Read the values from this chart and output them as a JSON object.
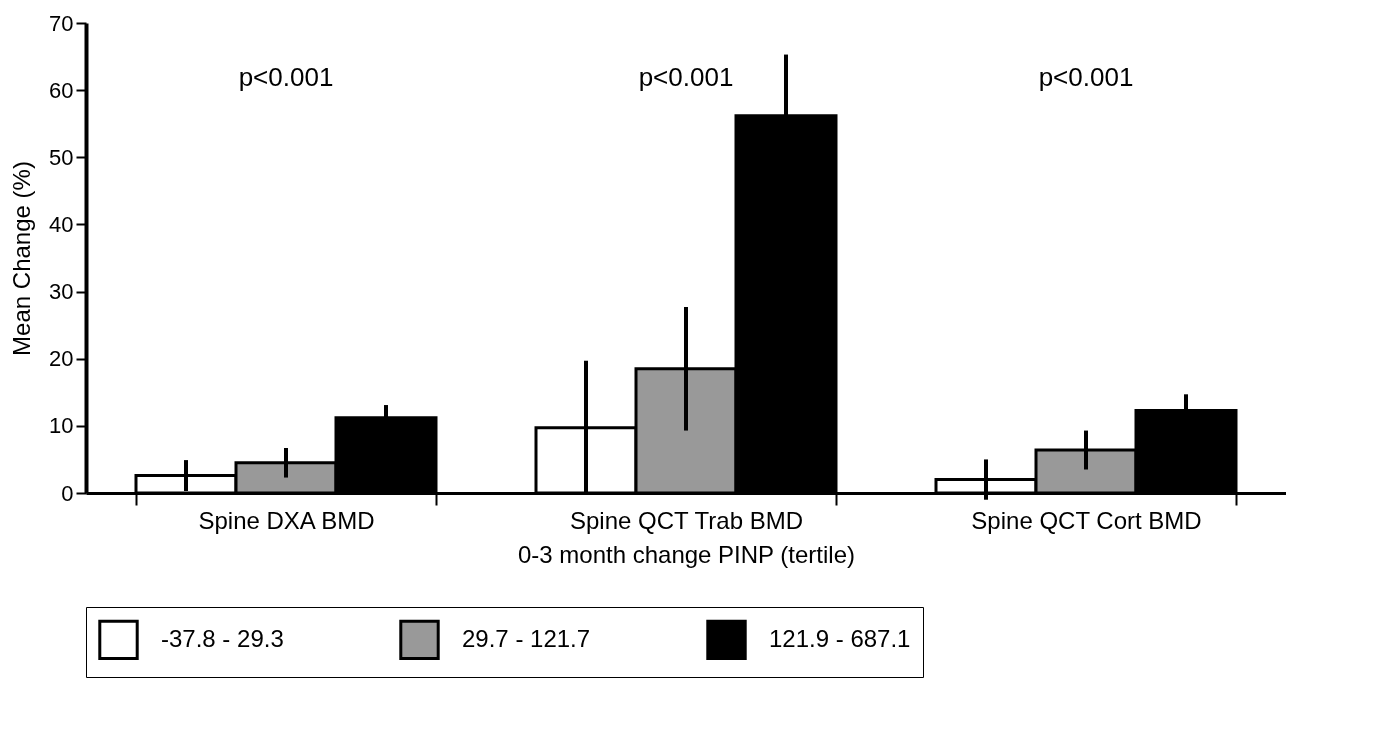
{
  "chart_data": {
    "type": "bar",
    "xlabel": "0-3 month change PINP (tertile)",
    "ylabel": "Mean Change (%)",
    "categories": [
      "Spine DXA BMD",
      "Spine QCT Trab BMD",
      "Spine QCT Cort BMD"
    ],
    "series": [
      {
        "name": "-37.8 - 29.3",
        "color": "#ffffff",
        "values": [
          2.6,
          9.7,
          2.0
        ],
        "errors": [
          2.3,
          10,
          3
        ]
      },
      {
        "name": "29.7 - 121.7",
        "color": "#999999",
        "values": [
          4.5,
          18.5,
          6.4
        ],
        "errors": [
          2.2,
          9.2,
          2.9
        ]
      },
      {
        "name": "121.9 - 687.1",
        "color": "#000000",
        "values": [
          11.2,
          56.2,
          12.3
        ],
        "errors": [
          1.9,
          9.1,
          2.4
        ]
      }
    ],
    "ylim": [
      0,
      70
    ],
    "yticks": [
      0,
      10,
      20,
      30,
      40,
      50,
      60,
      70
    ],
    "grid": false,
    "legend": "bottom",
    "annotations": [
      "p<0.001",
      "p<0.001",
      "p<0.001"
    ]
  }
}
